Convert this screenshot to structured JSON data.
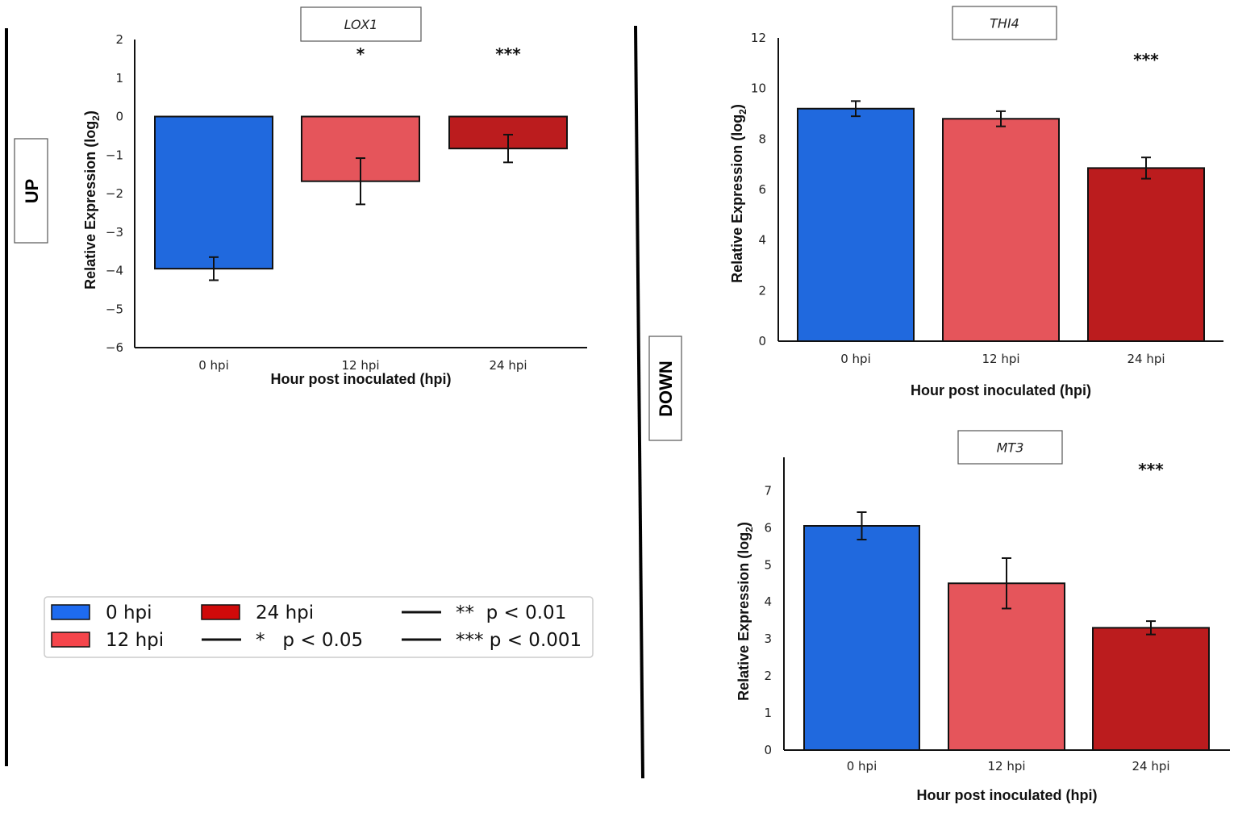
{
  "groups": {
    "up": "UP",
    "down": "DOWN"
  },
  "colors": {
    "0 hpi": "#2069DE",
    "12 hpi": "#E5555B",
    "24 hpi": "#BB1C1E",
    "legend_0": "#1E6BF0",
    "legend_12": "#F5454B",
    "legend_24": "#D00A0A"
  },
  "legend": {
    "items": [
      {
        "type": "patch",
        "label": "0 hpi",
        "color": "#1E6BF0"
      },
      {
        "type": "patch",
        "label": "12 hpi",
        "color": "#F5454B"
      },
      {
        "type": "patch",
        "label": "24 hpi",
        "color": "#D00A0A"
      },
      {
        "type": "line",
        "label": "*   p < 0.05"
      },
      {
        "type": "line",
        "label": "**  p < 0.01"
      },
      {
        "type": "line",
        "label": "*** p < 0.001"
      }
    ]
  },
  "chart_data": [
    {
      "type": "bar",
      "group": "UP",
      "title": "LOX1",
      "categories": [
        "0 hpi",
        "12 hpi",
        "24 hpi"
      ],
      "values": [
        -3.95,
        -1.68,
        -0.83
      ],
      "errors": [
        0.3,
        0.6,
        0.36
      ],
      "significance": [
        "",
        "*",
        "***"
      ],
      "xlabel": "Hour post inoculated (hpi)",
      "ylabel": "Relative Expression (log2)",
      "ylim": [
        -6,
        2
      ],
      "yticks": [
        2,
        1,
        0,
        -1,
        -2,
        -3,
        -4,
        -5,
        -6
      ],
      "ytick_labels": [
        "2",
        "1",
        "0",
        "−1",
        "−2",
        "−3",
        "−4",
        "−5",
        "−6"
      ]
    },
    {
      "type": "bar",
      "group": "DOWN",
      "title": "THI4",
      "categories": [
        "0 hpi",
        "12 hpi",
        "24 hpi"
      ],
      "values": [
        9.2,
        8.8,
        6.85
      ],
      "errors": [
        0.3,
        0.3,
        0.42
      ],
      "significance": [
        "",
        "",
        "***"
      ],
      "xlabel": "Hour post inoculated (hpi)",
      "ylabel": "Relative Expression (log2)",
      "ylim": [
        0,
        12
      ],
      "yticks": [
        0,
        2,
        4,
        6,
        8,
        10,
        12
      ],
      "ytick_labels": [
        "0",
        "2",
        "4",
        "6",
        "8",
        "10",
        "12"
      ]
    },
    {
      "type": "bar",
      "group": "DOWN",
      "title": "MT3",
      "categories": [
        "0 hpi",
        "12 hpi",
        "24 hpi"
      ],
      "values": [
        6.05,
        4.5,
        3.3
      ],
      "errors": [
        0.37,
        0.68,
        0.18
      ],
      "significance": [
        "",
        "",
        "***"
      ],
      "xlabel": "Hour post inoculated (hpi)",
      "ylabel": "Relative Expression (log2)",
      "ylim": [
        0,
        7.9
      ],
      "yticks": [
        0,
        1,
        2,
        3,
        4,
        5,
        6,
        7
      ],
      "ytick_labels": [
        "0",
        "1",
        "2",
        "3",
        "4",
        "5",
        "6",
        "7"
      ]
    }
  ]
}
